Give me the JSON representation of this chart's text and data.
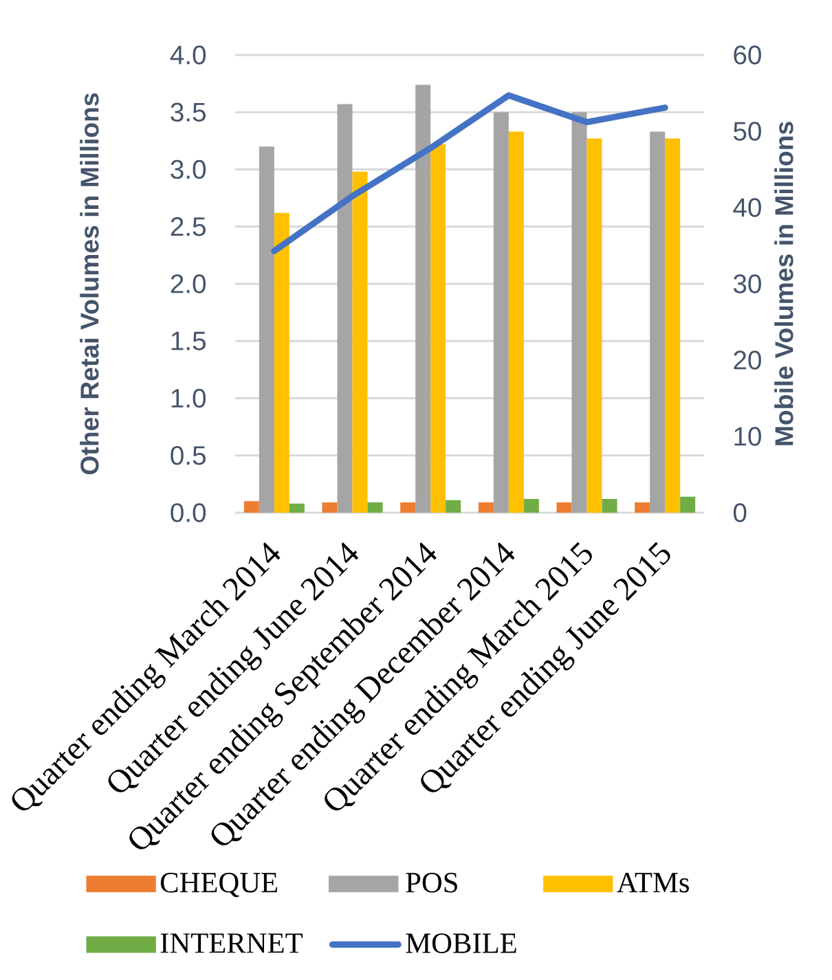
{
  "chart_data": {
    "type": "bar",
    "ylabel": "Other Retai Volumes in  Millions",
    "y2label": "Mobile Volumes in Millions",
    "categories": [
      "Quarter ending March 2014",
      "Quarter ending June 2014",
      "Quarter ending September 2014",
      "Quarter ending December 2014",
      "Quarter ending March 2015",
      "Quarter ending June 2015"
    ],
    "series": [
      {
        "name": "CHEQUE",
        "color": "#ed7d31",
        "values": [
          0.1,
          0.09,
          0.09,
          0.09,
          0.09,
          0.09
        ]
      },
      {
        "name": "POS",
        "color": "#a5a5a5",
        "values": [
          3.2,
          3.57,
          3.74,
          3.5,
          3.5,
          3.33
        ]
      },
      {
        "name": "ATMs",
        "color": "#ffc000",
        "values": [
          2.62,
          2.98,
          3.22,
          3.33,
          3.27,
          3.27
        ]
      },
      {
        "name": "INTERNET",
        "color": "#70ad47",
        "values": [
          0.08,
          0.09,
          0.11,
          0.12,
          0.12,
          0.14
        ]
      },
      {
        "name": "MOBILE",
        "type": "line",
        "axis": "y2",
        "color": "#4472c4",
        "values": [
          34.3,
          41.5,
          47.8,
          54.7,
          51.2,
          53.1
        ]
      }
    ],
    "ylim": [
      0,
      4
    ],
    "yticks": [
      {
        "value": 0,
        "label": "0.0"
      },
      {
        "value": 0.5,
        "label": "0.5"
      },
      {
        "value": 1,
        "label": "1.0"
      },
      {
        "value": 1.5,
        "label": "1.5"
      },
      {
        "value": 2,
        "label": "2.0"
      },
      {
        "value": 2.5,
        "label": "2.5"
      },
      {
        "value": 3,
        "label": "3.0"
      },
      {
        "value": 3.5,
        "label": "3.5"
      },
      {
        "value": 4,
        "label": "4.0"
      }
    ],
    "y2lim": [
      0,
      60
    ],
    "y2ticks": [
      0,
      10,
      20,
      30,
      40,
      50,
      60
    ],
    "grid": "y",
    "legend": "bottom"
  }
}
